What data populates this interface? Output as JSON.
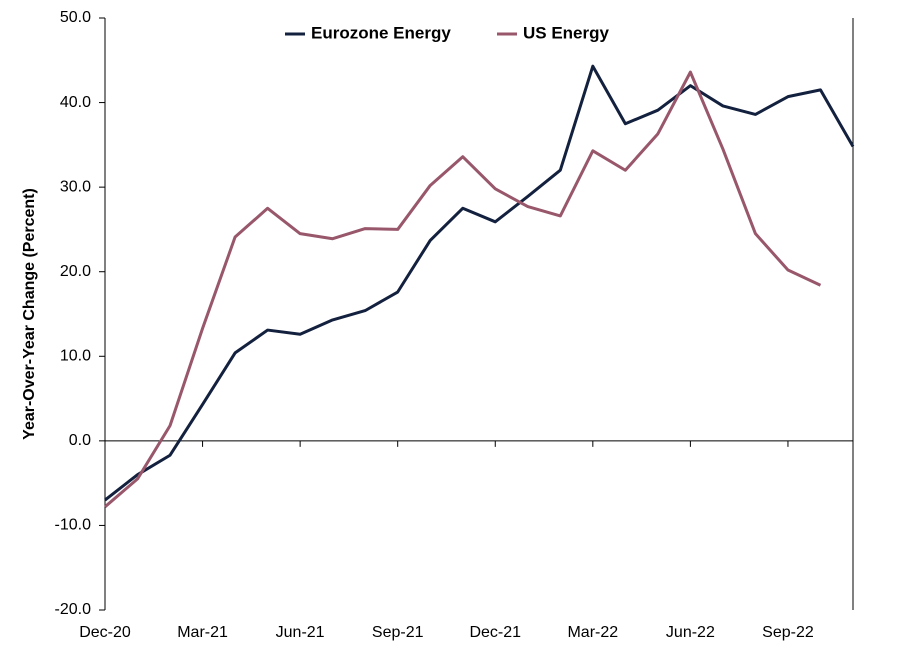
{
  "chart_data": {
    "type": "line",
    "y_label": "Year-Over-Year Change (Percent)",
    "categories": [
      "Dec-20",
      null,
      null,
      "Mar-21",
      null,
      null,
      "Jun-21",
      null,
      null,
      "Sep-21",
      null,
      null,
      "Dec-21",
      null,
      null,
      "Mar-22",
      null,
      null,
      "Jun-22",
      null,
      null,
      "Sep-22",
      null,
      null
    ],
    "series": [
      {
        "name": "Eurozone Energy",
        "color": "#13213f",
        "values": [
          -7.0,
          -4.0,
          -1.7,
          4.3,
          10.4,
          13.1,
          12.6,
          14.3,
          15.4,
          17.6,
          23.7,
          27.5,
          25.9,
          28.9,
          32.0,
          44.3,
          37.5,
          39.1,
          42.0,
          39.6,
          38.6,
          40.7,
          41.5,
          34.8
        ]
      },
      {
        "name": "US Energy",
        "color": "#98576b",
        "values": [
          -7.8,
          -4.5,
          1.8,
          13.3,
          24.1,
          27.5,
          24.5,
          23.9,
          25.1,
          25.0,
          30.2,
          33.6,
          29.8,
          27.7,
          26.6,
          34.3,
          32.0,
          36.3,
          43.6,
          34.5,
          24.5,
          20.2,
          18.4,
          null
        ]
      }
    ],
    "ylim": [
      -20,
      50
    ],
    "yticks": [
      {
        "value": -20,
        "label": "-20.0"
      },
      {
        "value": -10,
        "label": "-10.0"
      },
      {
        "value": 0,
        "label": "0.0"
      },
      {
        "value": 10,
        "label": "10.0"
      },
      {
        "value": 20,
        "label": "20.0"
      },
      {
        "value": 30,
        "label": "30.0"
      },
      {
        "value": 40,
        "label": "40.0"
      },
      {
        "value": 50,
        "label": "50.0"
      }
    ],
    "grid": false,
    "legend": "upper center"
  }
}
